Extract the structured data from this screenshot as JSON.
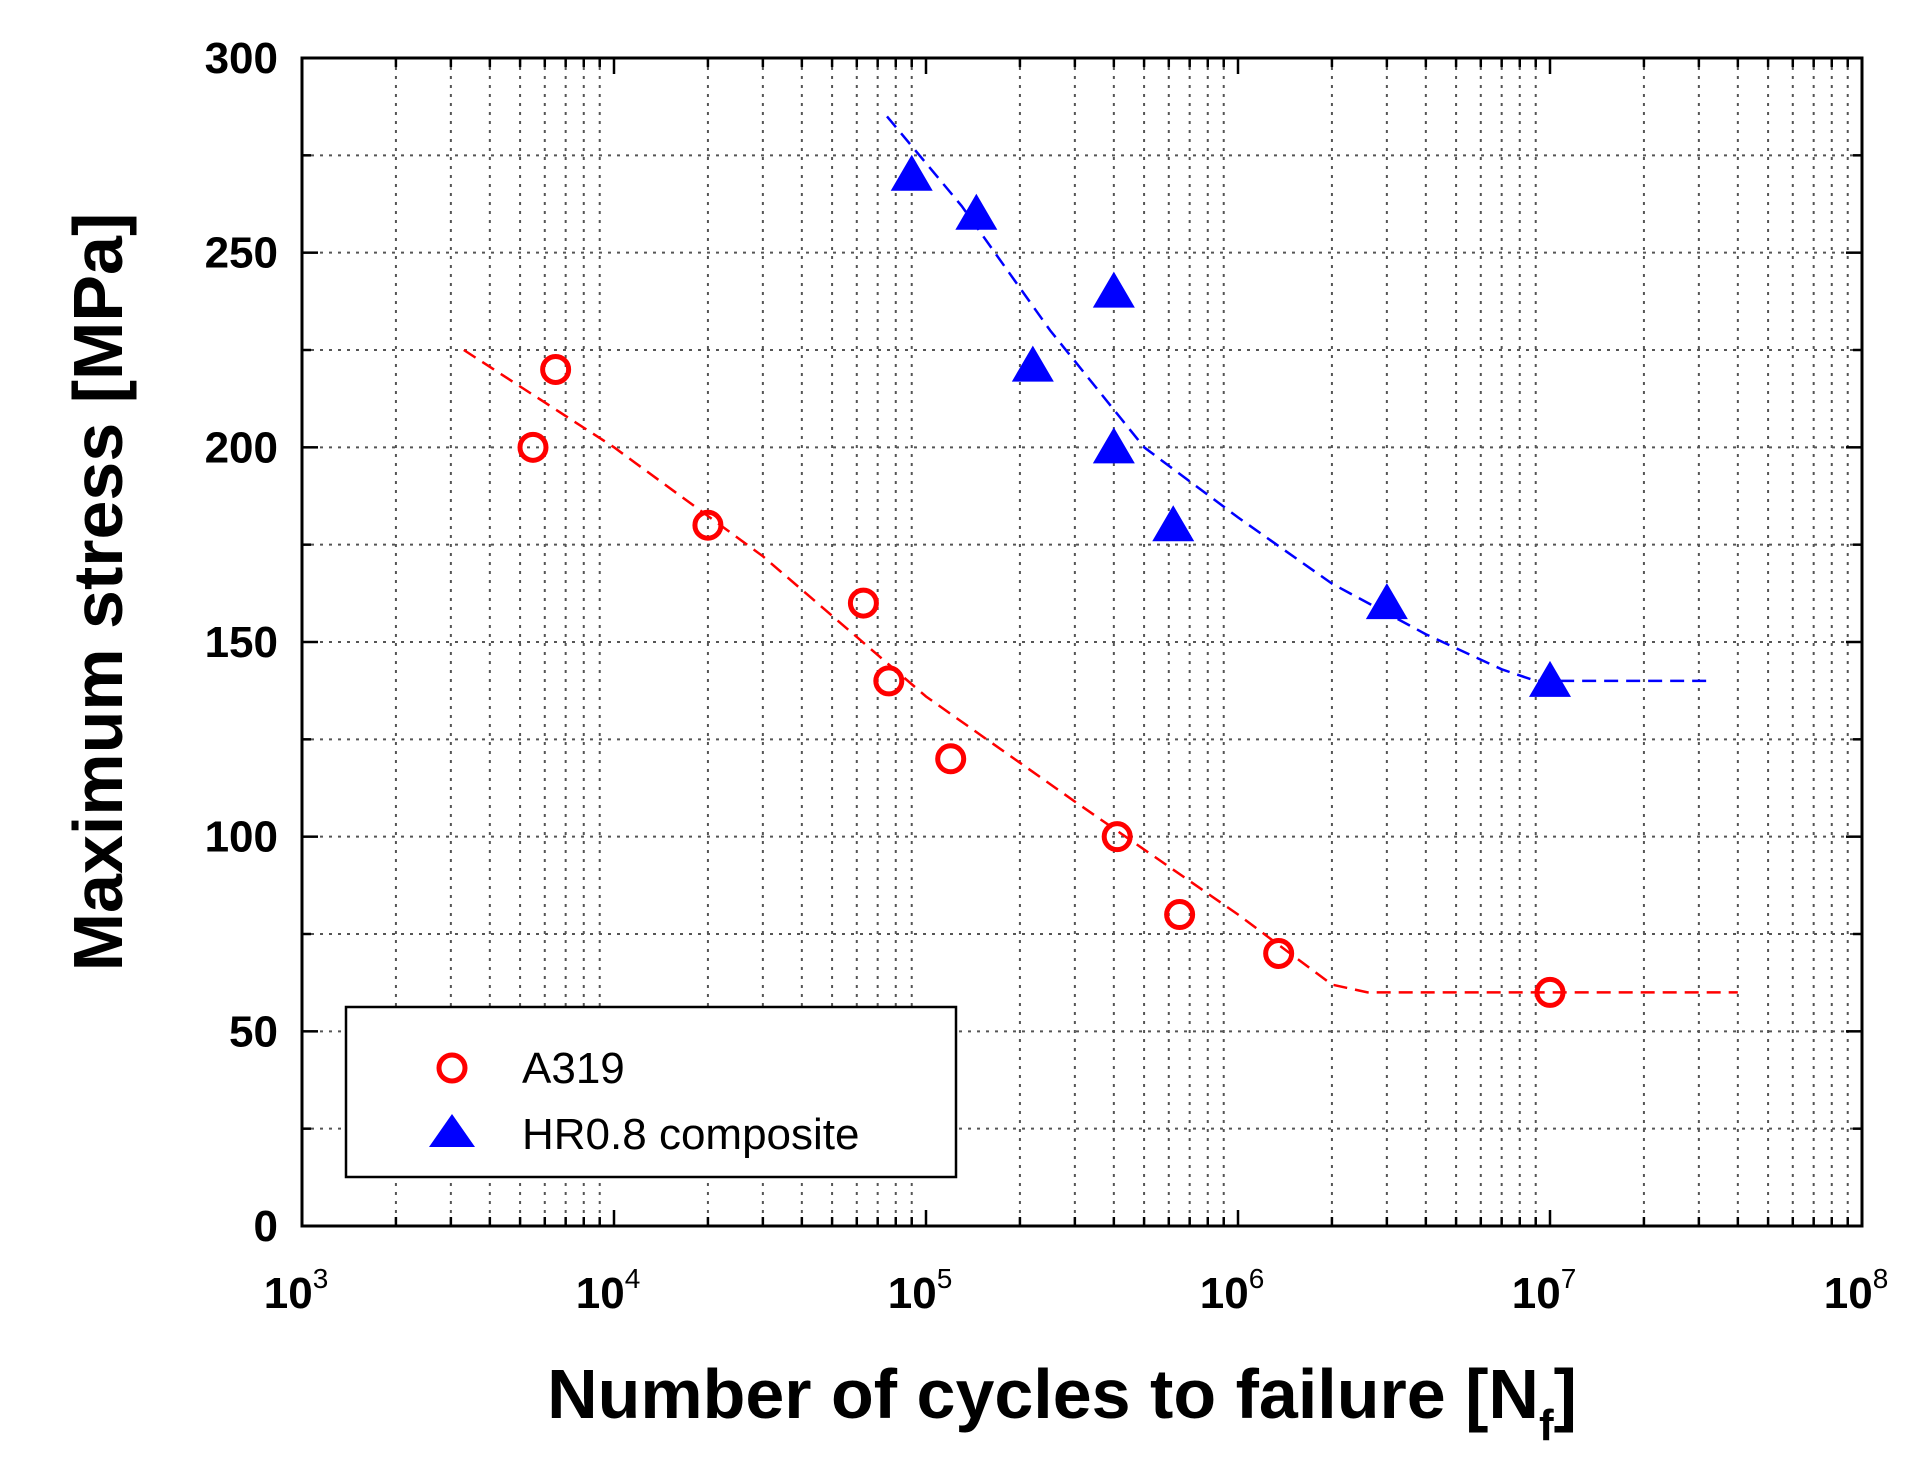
{
  "chart_data": {
    "type": "scatter",
    "title": "",
    "xlabel": "Number of cycles to failure [N",
    "xlabel_sub": "f",
    "xlabel_end": "]",
    "ylabel": "Maximum stress [MPa]",
    "xscale": "log",
    "xlim": [
      1000,
      100000000
    ],
    "ylim": [
      0,
      300
    ],
    "grid": true,
    "x_ticks": [
      {
        "base": "10",
        "exp": "3"
      },
      {
        "base": "10",
        "exp": "4"
      },
      {
        "base": "10",
        "exp": "5"
      },
      {
        "base": "10",
        "exp": "6"
      },
      {
        "base": "10",
        "exp": "7"
      },
      {
        "base": "10",
        "exp": "8"
      }
    ],
    "y_ticks": [
      "0",
      "50",
      "100",
      "150",
      "200",
      "250",
      "300"
    ],
    "legend_position": "bottom-left",
    "series": [
      {
        "name": "A319",
        "marker": "open-circle",
        "color": "#ff0000",
        "points": [
          {
            "x": 5500,
            "y": 200
          },
          {
            "x": 6500,
            "y": 220
          },
          {
            "x": 20000,
            "y": 180
          },
          {
            "x": 63000,
            "y": 160
          },
          {
            "x": 76000,
            "y": 140
          },
          {
            "x": 120000,
            "y": 120
          },
          {
            "x": 410000,
            "y": 100
          },
          {
            "x": 650000,
            "y": 80
          },
          {
            "x": 1350000,
            "y": 70
          },
          {
            "x": 10000000,
            "y": 60
          }
        ],
        "fit": [
          {
            "x": 3300,
            "y": 225
          },
          {
            "x": 10000,
            "y": 200
          },
          {
            "x": 30000,
            "y": 172
          },
          {
            "x": 100000,
            "y": 136
          },
          {
            "x": 300000,
            "y": 109
          },
          {
            "x": 1000000,
            "y": 80
          },
          {
            "x": 2000000,
            "y": 62
          },
          {
            "x": 2600000,
            "y": 60
          },
          {
            "x": 40000000,
            "y": 60
          }
        ]
      },
      {
        "name": "HR0.8 composite",
        "marker": "filled-triangle",
        "color": "#0000ff",
        "points": [
          {
            "x": 90000,
            "y": 270
          },
          {
            "x": 145000,
            "y": 260
          },
          {
            "x": 220000,
            "y": 221
          },
          {
            "x": 400000,
            "y": 240
          },
          {
            "x": 400000,
            "y": 200
          },
          {
            "x": 620000,
            "y": 180
          },
          {
            "x": 3000000,
            "y": 160
          },
          {
            "x": 10000000,
            "y": 140
          }
        ],
        "fit": [
          {
            "x": 75000,
            "y": 285
          },
          {
            "x": 130000,
            "y": 262
          },
          {
            "x": 250000,
            "y": 230
          },
          {
            "x": 500000,
            "y": 200
          },
          {
            "x": 1000000,
            "y": 182
          },
          {
            "x": 2000000,
            "y": 165
          },
          {
            "x": 4000000,
            "y": 152
          },
          {
            "x": 7000000,
            "y": 143
          },
          {
            "x": 9000000,
            "y": 140
          },
          {
            "x": 32000000,
            "y": 140
          }
        ]
      }
    ]
  }
}
